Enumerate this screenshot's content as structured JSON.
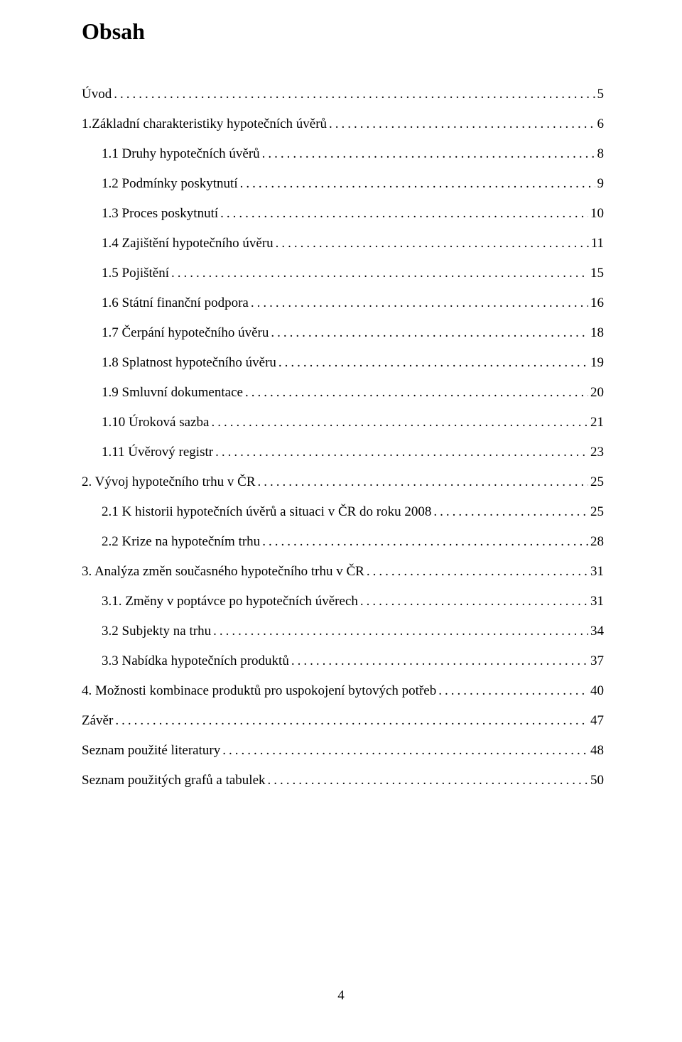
{
  "title": "Obsah",
  "page_number": "4",
  "text_color": "#000000",
  "background_color": "#ffffff",
  "font_family": "Times New Roman",
  "title_fontsize": 32,
  "body_fontsize": 19,
  "toc": [
    {
      "label": "Úvod",
      "page": "5",
      "level": 1
    },
    {
      "label": "1.Základní charakteristiky hypotečních úvěrů",
      "page": "6",
      "level": 1
    },
    {
      "label": "1.1 Druhy hypotečních úvěrů",
      "page": "8",
      "level": 2
    },
    {
      "label": "1.2 Podmínky poskytnutí",
      "page": "9",
      "level": 2
    },
    {
      "label": "1.3 Proces poskytnutí",
      "page": "10",
      "level": 2
    },
    {
      "label": "1.4 Zajištění hypotečního úvěru",
      "page": "11",
      "level": 2
    },
    {
      "label": "1.5 Pojištění",
      "page": "15",
      "level": 2
    },
    {
      "label": "1.6 Státní finanční podpora",
      "page": "16",
      "level": 2
    },
    {
      "label": "1.7 Čerpání hypotečního úvěru",
      "page": "18",
      "level": 2
    },
    {
      "label": "1.8 Splatnost hypotečního úvěru",
      "page": "19",
      "level": 2
    },
    {
      "label": "1.9 Smluvní dokumentace",
      "page": "20",
      "level": 2
    },
    {
      "label": "1.10 Úroková sazba",
      "page": "21",
      "level": 2
    },
    {
      "label": "1.11 Úvěrový registr",
      "page": "23",
      "level": 2
    },
    {
      "label": "2. Vývoj hypotečního trhu v ČR",
      "page": "25",
      "level": 1
    },
    {
      "label": "2.1 K historii hypotečních úvěrů a situaci v ČR do roku 2008",
      "page": "25",
      "level": 2
    },
    {
      "label": "2.2 Krize na hypotečním trhu",
      "page": "28",
      "level": 2
    },
    {
      "label": "3. Analýza změn současného hypotečního trhu v ČR",
      "page": "31",
      "level": 1
    },
    {
      "label": "3.1. Změny v poptávce po hypotečních úvěrech",
      "page": "31",
      "level": 2
    },
    {
      "label": "3.2 Subjekty na trhu",
      "page": "34",
      "level": 2
    },
    {
      "label": "3.3 Nabídka hypotečních produktů",
      "page": "37",
      "level": 2
    },
    {
      "label": "4. Možnosti kombinace produktů pro uspokojení bytových potřeb",
      "page": "40",
      "level": 1
    },
    {
      "label": "Závěr",
      "page": "47",
      "level": 1
    },
    {
      "label": "Seznam použité literatury",
      "page": "48",
      "level": 1
    },
    {
      "label": "Seznam použitých grafů a tabulek",
      "page": "50",
      "level": 1
    }
  ]
}
